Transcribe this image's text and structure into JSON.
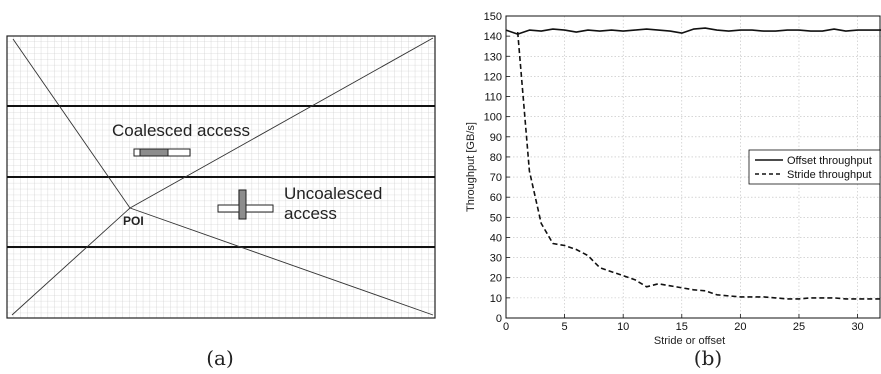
{
  "panel_a": {
    "caption": "(a)",
    "coalesced_label": "Coalesced access",
    "uncoalesced_label_line1": "Uncoalesced",
    "uncoalesced_label_line2": "access",
    "poi_label": "POI"
  },
  "panel_b": {
    "caption": "(b)"
  },
  "chart_data": {
    "type": "line",
    "xlabel": "Stride or offset",
    "ylabel": "Throughput  [GB/s]",
    "xlim": [
      0,
      32
    ],
    "ylim": [
      0,
      150
    ],
    "xticks": [
      0,
      5,
      10,
      15,
      20,
      25,
      30
    ],
    "yticks": [
      0,
      10,
      20,
      30,
      40,
      50,
      60,
      70,
      80,
      90,
      100,
      110,
      120,
      130,
      140,
      150
    ],
    "grid": true,
    "legend_position": "center-right",
    "series": [
      {
        "name": "Offset throughput",
        "style": "solid",
        "color": "#111111",
        "x": [
          0,
          1,
          2,
          3,
          4,
          5,
          6,
          7,
          8,
          9,
          10,
          11,
          12,
          13,
          14,
          15,
          16,
          17,
          18,
          19,
          20,
          21,
          22,
          23,
          24,
          25,
          26,
          27,
          28,
          29,
          30,
          31,
          32
        ],
        "y": [
          143,
          141,
          143,
          142.5,
          143.5,
          143,
          142,
          143,
          142.5,
          143,
          142.5,
          143,
          143.5,
          143,
          142.5,
          141.5,
          143.5,
          144,
          143,
          142.5,
          143,
          143,
          142.5,
          142.5,
          143,
          143,
          142.5,
          142.5,
          143.5,
          142.5,
          143,
          143,
          143
        ]
      },
      {
        "name": "Stride throughput",
        "style": "dashed",
        "color": "#111111",
        "x": [
          1,
          2,
          3,
          4,
          5,
          6,
          7,
          8,
          9,
          10,
          11,
          12,
          13,
          14,
          15,
          16,
          17,
          18,
          19,
          20,
          21,
          22,
          23,
          24,
          25,
          26,
          27,
          28,
          29,
          30,
          31,
          32
        ],
        "y": [
          142,
          73,
          47,
          37,
          36,
          34,
          31,
          25,
          23,
          21,
          19,
          15.5,
          17,
          16,
          15,
          14,
          13.5,
          11.5,
          11,
          10.5,
          10.5,
          10.5,
          10,
          9.5,
          9.5,
          10,
          10,
          10,
          9.5,
          9.5,
          9.5,
          9.5
        ]
      }
    ]
  }
}
